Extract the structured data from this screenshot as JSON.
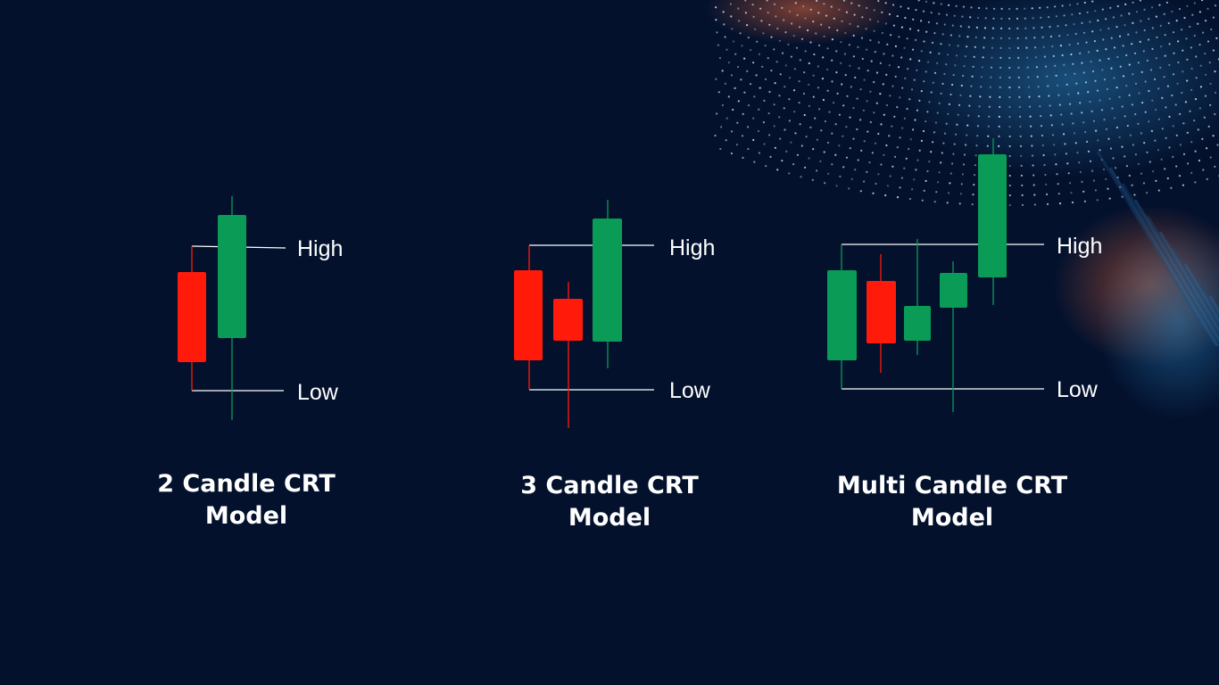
{
  "colors": {
    "background": "#03112d",
    "bullish": "#0a9b57",
    "bearish": "#ff1a0a",
    "guide": "#ffffff"
  },
  "models": [
    {
      "caption_line1": "2 Candle CRT",
      "caption_line2": "Model",
      "high_label": "High",
      "low_label": "Low",
      "candles": [
        {
          "direction": "bearish",
          "open": 7.0,
          "close": 4.6,
          "high": 8.6,
          "low": 4.0
        },
        {
          "direction": "bullish",
          "open": 5.7,
          "close": 9.2,
          "high": 9.7,
          "low": 3.2
        }
      ]
    },
    {
      "caption_line1": "3 Candle CRT",
      "caption_line2": "Model",
      "high_label": "High",
      "low_label": "Low",
      "candles": [
        {
          "direction": "bearish",
          "open": 7.0,
          "close": 4.6,
          "high": 8.6,
          "low": 4.0
        },
        {
          "direction": "bearish",
          "open": 6.2,
          "close": 5.1,
          "high": 6.6,
          "low": 3.0
        },
        {
          "direction": "bullish",
          "open": 5.1,
          "close": 9.2,
          "high": 9.7,
          "low": 4.4
        }
      ]
    },
    {
      "caption_line1": "Multi Candle CRT",
      "caption_line2": "Model",
      "high_label": "High",
      "low_label": "Low",
      "candles": [
        {
          "direction": "bullish",
          "open": 4.6,
          "close": 7.0,
          "high": 8.6,
          "low": 4.0
        },
        {
          "direction": "bearish",
          "open": 6.7,
          "close": 5.1,
          "high": 7.4,
          "low": 4.4
        },
        {
          "direction": "bullish",
          "open": 5.2,
          "close": 6.1,
          "high": 8.7,
          "low": 4.8
        },
        {
          "direction": "bullish",
          "open": 6.0,
          "close": 6.9,
          "high": 7.2,
          "low": 3.2
        },
        {
          "direction": "bullish",
          "open": 7.3,
          "close": 10.6,
          "high": 11.0,
          "low": 6.8
        }
      ]
    }
  ]
}
